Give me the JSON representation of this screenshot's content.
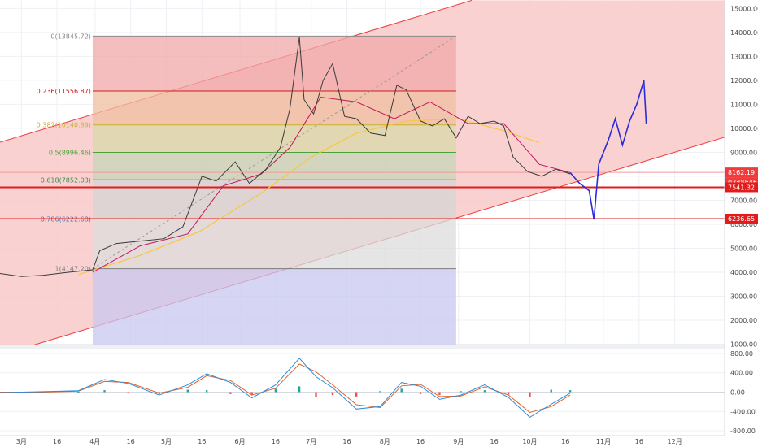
{
  "chart_data": [
    {
      "type": "line",
      "panel": "price",
      "x_tick_labels": [
        "3月",
        "16",
        "4月",
        "16",
        "5月",
        "16",
        "6月",
        "16",
        "7月",
        "16",
        "8月",
        "16",
        "9月",
        "16",
        "10月",
        "16",
        "11月",
        "16",
        "12月"
      ],
      "y_tick_labels": [
        "15000.00",
        "14000.00",
        "13000.00",
        "12000.00",
        "11000.00",
        "10000.00",
        "9000.00",
        "8000.00",
        "7000.00",
        "6000.00",
        "5000.00",
        "4000.00",
        "3000.00",
        "2000.00",
        "1000.00"
      ],
      "ylim": [
        950,
        15350
      ],
      "colors": {
        "price_line": "#3a3a3a",
        "ma_fast": "#c2185b",
        "ma_slow": "#f5c842",
        "projection": "#2b2bd9",
        "channel": "#ef3b3b",
        "channel_fill": "#f9c9c9",
        "hline": "#e31b1b"
      },
      "fib_levels": [
        {
          "label": "0(13845.72)",
          "price": 13845.72,
          "color": "#8a8a8a",
          "fill": "#f1a8a8"
        },
        {
          "label": "0.236(11556.87)",
          "price": 11556.87,
          "color": "#d11a1a",
          "fill": "#f0bfa0"
        },
        {
          "label": "0.382(10140.89)",
          "price": 10140.89,
          "color": "#c9b12a",
          "fill": "#d8d9a8"
        },
        {
          "label": "0.5(8996.46)",
          "price": 8996.46,
          "color": "#49a33a",
          "fill": "#c6d6b8"
        },
        {
          "label": "0.618(7852.03)",
          "price": 7852.03,
          "color": "#3e8f56",
          "fill": "#d4d4d4"
        },
        {
          "label": "0.786(6222.68)",
          "price": 6222.68,
          "color": "#4a7bb8",
          "fill": "#dcdcdc"
        },
        {
          "label": "1(4147.20)",
          "price": 4147.2,
          "color": "#7b7b7b",
          "fill": "#c8c8f0"
        }
      ],
      "price_series": [
        {
          "date": "2019-02-20",
          "price": 3950
        },
        {
          "date": "2019-03-01",
          "price": 3820
        },
        {
          "date": "2019-03-10",
          "price": 3870
        },
        {
          "date": "2019-03-20",
          "price": 3990
        },
        {
          "date": "2019-03-31",
          "price": 4100
        },
        {
          "date": "2019-04-03",
          "price": 4900
        },
        {
          "date": "2019-04-10",
          "price": 5200
        },
        {
          "date": "2019-04-20",
          "price": 5300
        },
        {
          "date": "2019-04-30",
          "price": 5400
        },
        {
          "date": "2019-05-08",
          "price": 5900
        },
        {
          "date": "2019-05-13",
          "price": 7200
        },
        {
          "date": "2019-05-16",
          "price": 8000
        },
        {
          "date": "2019-05-22",
          "price": 7800
        },
        {
          "date": "2019-05-30",
          "price": 8600
        },
        {
          "date": "2019-06-05",
          "price": 7700
        },
        {
          "date": "2019-06-12",
          "price": 8300
        },
        {
          "date": "2019-06-18",
          "price": 9200
        },
        {
          "date": "2019-06-22",
          "price": 10800
        },
        {
          "date": "2019-06-26",
          "price": 13800
        },
        {
          "date": "2019-06-28",
          "price": 11200
        },
        {
          "date": "2019-07-02",
          "price": 10600
        },
        {
          "date": "2019-07-06",
          "price": 12000
        },
        {
          "date": "2019-07-10",
          "price": 12700
        },
        {
          "date": "2019-07-15",
          "price": 10500
        },
        {
          "date": "2019-07-20",
          "price": 10400
        },
        {
          "date": "2019-07-26",
          "price": 9800
        },
        {
          "date": "2019-08-01",
          "price": 9700
        },
        {
          "date": "2019-08-06",
          "price": 11800
        },
        {
          "date": "2019-08-10",
          "price": 11600
        },
        {
          "date": "2019-08-16",
          "price": 10300
        },
        {
          "date": "2019-08-21",
          "price": 10100
        },
        {
          "date": "2019-08-26",
          "price": 10400
        },
        {
          "date": "2019-08-31",
          "price": 9600
        },
        {
          "date": "2019-09-05",
          "price": 10500
        },
        {
          "date": "2019-09-10",
          "price": 10200
        },
        {
          "date": "2019-09-16",
          "price": 10300
        },
        {
          "date": "2019-09-20",
          "price": 10100
        },
        {
          "date": "2019-09-24",
          "price": 8800
        },
        {
          "date": "2019-09-30",
          "price": 8200
        },
        {
          "date": "2019-10-06",
          "price": 8000
        },
        {
          "date": "2019-10-12",
          "price": 8300
        },
        {
          "date": "2019-10-18",
          "price": 8100
        }
      ],
      "ma_fast_series": [
        {
          "date": "2019-03-31",
          "price": 4000
        },
        {
          "date": "2019-04-20",
          "price": 5100
        },
        {
          "date": "2019-05-10",
          "price": 5600
        },
        {
          "date": "2019-05-25",
          "price": 7600
        },
        {
          "date": "2019-06-10",
          "price": 8100
        },
        {
          "date": "2019-06-22",
          "price": 9200
        },
        {
          "date": "2019-07-05",
          "price": 11300
        },
        {
          "date": "2019-07-20",
          "price": 11100
        },
        {
          "date": "2019-08-05",
          "price": 10400
        },
        {
          "date": "2019-08-20",
          "price": 11100
        },
        {
          "date": "2019-09-05",
          "price": 10200
        },
        {
          "date": "2019-09-20",
          "price": 10200
        },
        {
          "date": "2019-10-05",
          "price": 8500
        },
        {
          "date": "2019-10-18",
          "price": 8150
        }
      ],
      "ma_slow_series": [
        {
          "date": "2019-03-25",
          "price": 3900
        },
        {
          "date": "2019-04-20",
          "price": 4700
        },
        {
          "date": "2019-05-15",
          "price": 5700
        },
        {
          "date": "2019-06-10",
          "price": 7300
        },
        {
          "date": "2019-07-01",
          "price": 8800
        },
        {
          "date": "2019-07-20",
          "price": 9800
        },
        {
          "date": "2019-08-10",
          "price": 10300
        },
        {
          "date": "2019-09-01",
          "price": 10400
        },
        {
          "date": "2019-09-20",
          "price": 9900
        },
        {
          "date": "2019-10-05",
          "price": 9400
        }
      ],
      "projection_series": [
        {
          "date": "2019-10-18",
          "price": 8150
        },
        {
          "date": "2019-10-22",
          "price": 7700
        },
        {
          "date": "2019-10-26",
          "price": 7400
        },
        {
          "date": "2019-10-28",
          "price": 6200
        },
        {
          "date": "2019-10-30",
          "price": 8500
        },
        {
          "date": "2019-11-03",
          "price": 9500
        },
        {
          "date": "2019-11-06",
          "price": 10400
        },
        {
          "date": "2019-11-09",
          "price": 9300
        },
        {
          "date": "2019-11-12",
          "price": 10300
        },
        {
          "date": "2019-11-15",
          "price": 11000
        },
        {
          "date": "2019-11-18",
          "price": 12000
        },
        {
          "date": "2019-11-19",
          "price": 10200
        }
      ],
      "horizontal_lines": [
        {
          "price": 8162.19,
          "label": "8162.19",
          "tag_color": "#ef3b3b",
          "line_color": "#f09a9a"
        },
        {
          "label": "03:09:46",
          "tag_color": "#ef3b3b"
        },
        {
          "price": 7541.32,
          "label": "7541.32",
          "tag_color": "#e31b1b",
          "line_color": "#e31b1b"
        },
        {
          "price": 6236.65,
          "label": "6236.65",
          "tag_color": "#e31b1b",
          "line_color": "#e31b1b"
        }
      ]
    },
    {
      "type": "line",
      "panel": "oscillator",
      "y_tick_labels": [
        "800.00",
        "400.00",
        "0.00",
        "-400.00",
        "-800.00"
      ],
      "ylim": [
        -900,
        900
      ],
      "colors": {
        "line_a": "#2f8cd8",
        "line_b": "#e0602c",
        "hist_pos": "#26a69a",
        "hist_neg": "#ef5350"
      },
      "line_a": [
        {
          "date": "2019-02-20",
          "value": -10
        },
        {
          "date": "2019-03-10",
          "value": 10
        },
        {
          "date": "2019-03-25",
          "value": 30
        },
        {
          "date": "2019-04-05",
          "value": 260
        },
        {
          "date": "2019-04-15",
          "value": 180
        },
        {
          "date": "2019-04-28",
          "value": -60
        },
        {
          "date": "2019-05-10",
          "value": 150
        },
        {
          "date": "2019-05-18",
          "value": 380
        },
        {
          "date": "2019-05-28",
          "value": 200
        },
        {
          "date": "2019-06-06",
          "value": -120
        },
        {
          "date": "2019-06-16",
          "value": 150
        },
        {
          "date": "2019-06-26",
          "value": 700
        },
        {
          "date": "2019-07-03",
          "value": 320
        },
        {
          "date": "2019-07-10",
          "value": 90
        },
        {
          "date": "2019-07-20",
          "value": -350
        },
        {
          "date": "2019-07-30",
          "value": -300
        },
        {
          "date": "2019-08-08",
          "value": 200
        },
        {
          "date": "2019-08-16",
          "value": 120
        },
        {
          "date": "2019-08-24",
          "value": -150
        },
        {
          "date": "2019-09-02",
          "value": -60
        },
        {
          "date": "2019-09-12",
          "value": 150
        },
        {
          "date": "2019-09-22",
          "value": -110
        },
        {
          "date": "2019-10-01",
          "value": -520
        },
        {
          "date": "2019-10-10",
          "value": -250
        },
        {
          "date": "2019-10-18",
          "value": -20
        }
      ],
      "line_b": [
        {
          "date": "2019-02-20",
          "value": 0
        },
        {
          "date": "2019-03-10",
          "value": 0
        },
        {
          "date": "2019-03-25",
          "value": 20
        },
        {
          "date": "2019-04-05",
          "value": 220
        },
        {
          "date": "2019-04-15",
          "value": 200
        },
        {
          "date": "2019-04-28",
          "value": -20
        },
        {
          "date": "2019-05-10",
          "value": 100
        },
        {
          "date": "2019-05-18",
          "value": 340
        },
        {
          "date": "2019-05-28",
          "value": 240
        },
        {
          "date": "2019-06-06",
          "value": -60
        },
        {
          "date": "2019-06-16",
          "value": 80
        },
        {
          "date": "2019-06-26",
          "value": 580
        },
        {
          "date": "2019-07-03",
          "value": 420
        },
        {
          "date": "2019-07-10",
          "value": 150
        },
        {
          "date": "2019-07-20",
          "value": -260
        },
        {
          "date": "2019-07-30",
          "value": -320
        },
        {
          "date": "2019-08-08",
          "value": 130
        },
        {
          "date": "2019-08-16",
          "value": 160
        },
        {
          "date": "2019-08-24",
          "value": -90
        },
        {
          "date": "2019-09-02",
          "value": -80
        },
        {
          "date": "2019-09-12",
          "value": 110
        },
        {
          "date": "2019-09-22",
          "value": -60
        },
        {
          "date": "2019-10-01",
          "value": -420
        },
        {
          "date": "2019-10-10",
          "value": -300
        },
        {
          "date": "2019-10-18",
          "value": -60
        }
      ]
    }
  ]
}
